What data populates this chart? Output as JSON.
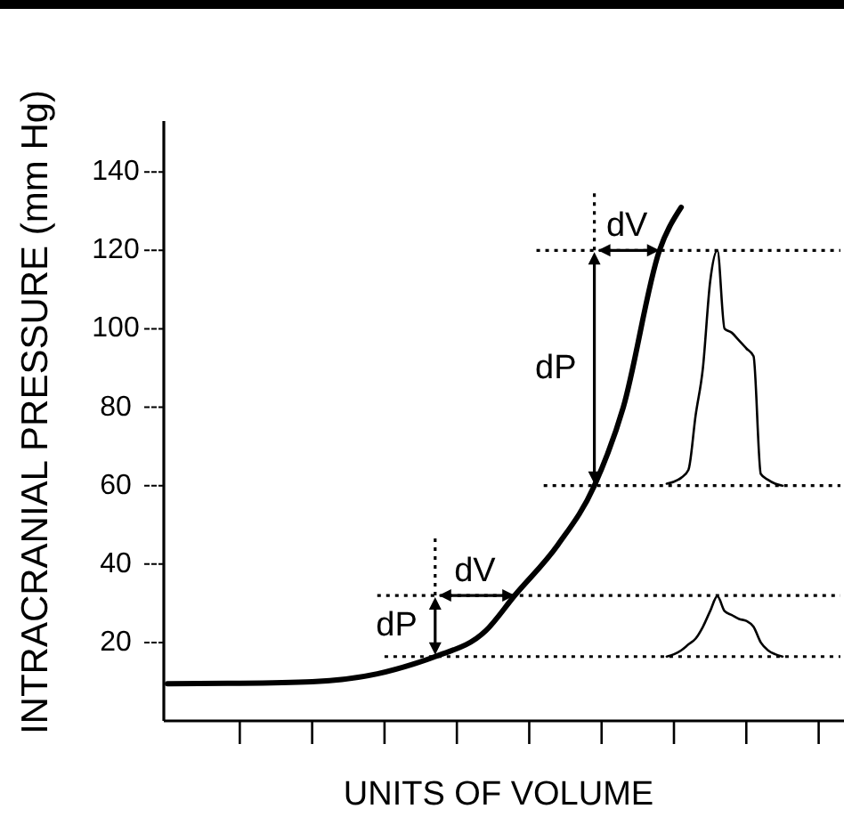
{
  "chart_data": {
    "type": "line",
    "xlabel": "UNITS OF VOLUME",
    "ylabel": "INTRACRANIAL PRESSURE (mm Hg)",
    "categories": [
      null,
      null,
      null,
      null,
      null,
      null,
      null,
      null,
      null,
      null,
      null,
      null,
      null,
      null,
      null,
      null,
      null,
      null,
      null,
      null,
      null,
      null,
      null,
      null,
      null,
      null,
      null,
      null,
      null,
      null,
      null,
      null,
      null,
      null,
      null,
      null,
      null,
      null,
      null,
      null,
      null,
      null,
      null,
      null,
      null,
      null,
      null,
      null,
      null,
      null,
      null,
      null,
      null,
      null,
      null,
      null,
      null,
      null,
      null,
      null,
      null,
      null,
      null,
      null,
      null,
      null,
      null,
      null,
      null,
      null,
      null,
      null,
      null,
      null,
      null,
      null,
      null,
      null,
      null,
      null,
      null,
      null,
      null,
      null,
      null,
      null,
      null,
      null,
      null,
      null,
      null,
      null,
      null,
      null
    ],
    "ylim": [
      0,
      153
    ],
    "yticks": [
      20,
      40,
      60,
      80,
      100,
      120,
      140
    ],
    "series": [
      {
        "color": "#000000",
        "line_style": "solid",
        "values": [
          9.5,
          null,
          null,
          null,
          null,
          null,
          null,
          null,
          null,
          null,
          9.6,
          null,
          null,
          null,
          null,
          null,
          null,
          null,
          null,
          null,
          10,
          null,
          null,
          null,
          null,
          null,
          null,
          null,
          null,
          12,
          null,
          null,
          null,
          null,
          14.5,
          null,
          null,
          16.4,
          null,
          null,
          null,
          null,
          null,
          null,
          23,
          null,
          null,
          null,
          32,
          null,
          null,
          null,
          null,
          null,
          45,
          null,
          null,
          null,
          null,
          60,
          null,
          null,
          null,
          80,
          null,
          null,
          null,
          null,
          120,
          null,
          null,
          131,
          null,
          null,
          null,
          null,
          null,
          null,
          null,
          null,
          null,
          null,
          null,
          null,
          null,
          null,
          null,
          null,
          null,
          null,
          null,
          null,
          null,
          null
        ]
      },
      {
        "color": "#000000",
        "line_style": "solid",
        "values": [
          null,
          null,
          null,
          null,
          null,
          null,
          null,
          null,
          null,
          null,
          null,
          null,
          null,
          null,
          null,
          null,
          null,
          null,
          null,
          null,
          null,
          null,
          null,
          null,
          null,
          null,
          null,
          null,
          null,
          null,
          null,
          null,
          null,
          null,
          null,
          null,
          null,
          null,
          null,
          null,
          null,
          null,
          null,
          null,
          null,
          null,
          null,
          null,
          null,
          null,
          null,
          null,
          null,
          null,
          null,
          null,
          null,
          null,
          null,
          null,
          null,
          null,
          null,
          null,
          null,
          null,
          null,
          null,
          null,
          60.5,
          61,
          62,
          64,
          78,
          90,
          112,
          120,
          100,
          99,
          97,
          95,
          93,
          63,
          61.5,
          60.5,
          60,
          null,
          null,
          null,
          null,
          null,
          null,
          null,
          null
        ]
      },
      {
        "color": "#000000",
        "line_style": "solid",
        "values": [
          null,
          null,
          null,
          null,
          null,
          null,
          null,
          null,
          null,
          null,
          null,
          null,
          null,
          null,
          null,
          null,
          null,
          null,
          null,
          null,
          null,
          null,
          null,
          null,
          null,
          null,
          null,
          null,
          null,
          null,
          null,
          null,
          null,
          null,
          null,
          null,
          null,
          null,
          null,
          null,
          null,
          null,
          null,
          null,
          null,
          null,
          null,
          null,
          null,
          null,
          null,
          null,
          null,
          null,
          null,
          null,
          null,
          null,
          null,
          null,
          null,
          null,
          null,
          null,
          null,
          null,
          null,
          null,
          null,
          16.4,
          17,
          18,
          19.5,
          21,
          24,
          28,
          31.8,
          28,
          27,
          26,
          25.5,
          24,
          20,
          18,
          17,
          16.4,
          null,
          null,
          null,
          null,
          null,
          null,
          null,
          null
        ]
      },
      {
        "color": "#000000",
        "line_style": "dotted",
        "values": [
          null,
          null,
          null,
          null,
          null,
          null,
          null,
          null,
          null,
          null,
          null,
          null,
          null,
          null,
          null,
          null,
          null,
          null,
          null,
          null,
          null,
          null,
          null,
          null,
          null,
          null,
          null,
          null,
          null,
          null,
          null,
          null,
          null,
          null,
          null,
          null,
          null,
          null,
          null,
          null,
          null,
          null,
          null,
          null,
          null,
          null,
          null,
          null,
          null,
          null,
          null,
          120,
          null,
          null,
          null,
          null,
          null,
          null,
          null,
          null,
          null,
          null,
          null,
          null,
          null,
          null,
          null,
          null,
          null,
          null,
          null,
          null,
          null,
          null,
          null,
          null,
          null,
          null,
          null,
          null,
          null,
          null,
          null,
          null,
          null,
          null,
          null,
          null,
          null,
          null,
          null,
          null,
          null,
          120
        ]
      },
      {
        "color": "#000000",
        "line_style": "dotted",
        "values": [
          null,
          null,
          null,
          null,
          null,
          null,
          null,
          null,
          null,
          null,
          null,
          null,
          null,
          null,
          null,
          null,
          null,
          null,
          null,
          null,
          null,
          null,
          null,
          null,
          null,
          null,
          null,
          null,
          null,
          null,
          null,
          null,
          null,
          null,
          null,
          null,
          null,
          null,
          null,
          null,
          null,
          null,
          null,
          null,
          null,
          null,
          null,
          null,
          null,
          null,
          null,
          null,
          60,
          null,
          null,
          null,
          null,
          null,
          null,
          null,
          null,
          null,
          null,
          null,
          null,
          null,
          null,
          null,
          null,
          null,
          null,
          null,
          null,
          null,
          null,
          null,
          null,
          null,
          null,
          null,
          null,
          null,
          null,
          null,
          null,
          null,
          null,
          null,
          null,
          null,
          null,
          null,
          null,
          60
        ]
      },
      {
        "color": "#000000",
        "line_style": "dotted",
        "values": [
          null,
          null,
          null,
          null,
          null,
          null,
          null,
          null,
          null,
          null,
          null,
          null,
          null,
          null,
          null,
          null,
          null,
          null,
          null,
          null,
          null,
          null,
          null,
          null,
          null,
          null,
          null,
          null,
          null,
          32,
          null,
          null,
          null,
          null,
          null,
          null,
          null,
          null,
          null,
          null,
          null,
          null,
          null,
          null,
          null,
          null,
          null,
          null,
          null,
          null,
          null,
          null,
          null,
          null,
          null,
          null,
          null,
          null,
          null,
          null,
          null,
          null,
          null,
          null,
          null,
          null,
          null,
          null,
          null,
          null,
          null,
          null,
          null,
          null,
          null,
          null,
          null,
          null,
          null,
          null,
          null,
          null,
          null,
          null,
          null,
          null,
          null,
          null,
          null,
          null,
          null,
          null,
          null,
          32
        ]
      },
      {
        "color": "#000000",
        "line_style": "dotted",
        "values": [
          null,
          null,
          null,
          null,
          null,
          null,
          null,
          null,
          null,
          null,
          null,
          null,
          null,
          null,
          null,
          null,
          null,
          null,
          null,
          null,
          null,
          null,
          null,
          null,
          null,
          null,
          null,
          null,
          null,
          null,
          16.4,
          null,
          null,
          null,
          null,
          null,
          null,
          null,
          null,
          null,
          null,
          null,
          null,
          null,
          null,
          null,
          null,
          null,
          null,
          null,
          null,
          null,
          null,
          null,
          null,
          null,
          null,
          null,
          null,
          null,
          null,
          null,
          null,
          null,
          null,
          null,
          null,
          null,
          null,
          null,
          null,
          null,
          null,
          null,
          null,
          null,
          null,
          null,
          null,
          null,
          null,
          null,
          null,
          null,
          null,
          null,
          null,
          null,
          null,
          null,
          null,
          null,
          null,
          16.4
        ]
      }
    ],
    "annotations": [
      "dV",
      "dP",
      "dV",
      "dP"
    ]
  }
}
